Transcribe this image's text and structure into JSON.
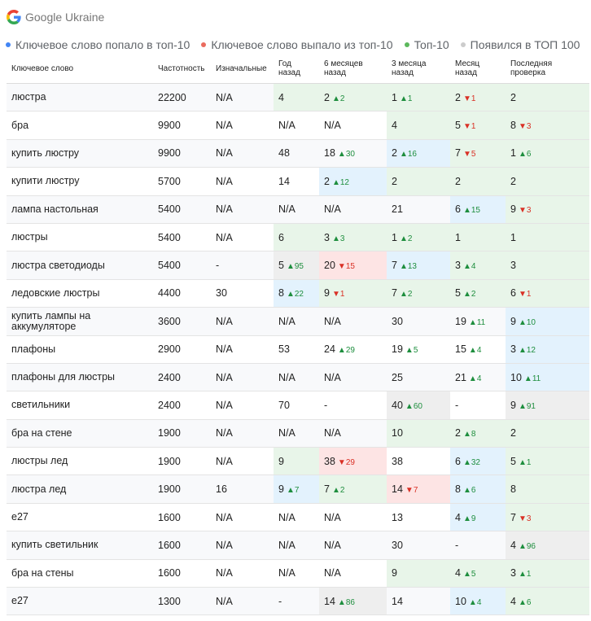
{
  "header": {
    "title": "Google Ukraine"
  },
  "legend": [
    {
      "label": "Ключевое слово попало в топ-10",
      "color": "#4285f4"
    },
    {
      "label": "Ключевое слово выпало из топ-10",
      "color": "#ea6b5e"
    },
    {
      "label": "Топ-10",
      "color": "#5cb85c"
    },
    {
      "label": "Появился в ТОП 100",
      "color": "#cccccc"
    }
  ],
  "columns": [
    "Ключевое слово",
    "Частотность",
    "Изначальные",
    "Год назад",
    "6 месяцев назад",
    "3 месяца назад",
    "Месяц назад",
    "Последняя проверка"
  ],
  "rows": [
    {
      "keyword": "люстра",
      "freq": "22200",
      "init": "N/A",
      "cells": [
        {
          "v": "4",
          "bg": "g"
        },
        {
          "v": "2",
          "d": "2",
          "dir": "up",
          "bg": "g"
        },
        {
          "v": "1",
          "d": "1",
          "dir": "up",
          "bg": "g"
        },
        {
          "v": "2",
          "d": "1",
          "dir": "dn",
          "bg": "g"
        },
        {
          "v": "2",
          "bg": "g"
        }
      ]
    },
    {
      "keyword": "бра",
      "freq": "9900",
      "init": "N/A",
      "cells": [
        {
          "v": "N/A"
        },
        {
          "v": "N/A"
        },
        {
          "v": "4",
          "bg": "g"
        },
        {
          "v": "5",
          "d": "1",
          "dir": "dn",
          "bg": "g"
        },
        {
          "v": "8",
          "d": "3",
          "dir": "dn",
          "bg": "g"
        }
      ]
    },
    {
      "keyword": "купить люстру",
      "freq": "9900",
      "init": "N/A",
      "cells": [
        {
          "v": "48"
        },
        {
          "v": "18",
          "d": "30",
          "dir": "up"
        },
        {
          "v": "2",
          "d": "16",
          "dir": "up",
          "bg": "b"
        },
        {
          "v": "7",
          "d": "5",
          "dir": "dn",
          "bg": "g"
        },
        {
          "v": "1",
          "d": "6",
          "dir": "up",
          "bg": "g"
        }
      ]
    },
    {
      "keyword": "купити люстру",
      "freq": "5700",
      "init": "N/A",
      "cells": [
        {
          "v": "14"
        },
        {
          "v": "2",
          "d": "12",
          "dir": "up",
          "bg": "b"
        },
        {
          "v": "2",
          "bg": "g"
        },
        {
          "v": "2",
          "bg": "g"
        },
        {
          "v": "2",
          "bg": "g"
        }
      ]
    },
    {
      "keyword": "лампа настольная",
      "freq": "5400",
      "init": "N/A",
      "cells": [
        {
          "v": "N/A"
        },
        {
          "v": "N/A"
        },
        {
          "v": "21"
        },
        {
          "v": "6",
          "d": "15",
          "dir": "up",
          "bg": "b"
        },
        {
          "v": "9",
          "d": "3",
          "dir": "dn",
          "bg": "g"
        }
      ]
    },
    {
      "keyword": "люстры",
      "freq": "5400",
      "init": "N/A",
      "cells": [
        {
          "v": "6",
          "bg": "g"
        },
        {
          "v": "3",
          "d": "3",
          "dir": "up",
          "bg": "g"
        },
        {
          "v": "1",
          "d": "2",
          "dir": "up",
          "bg": "g"
        },
        {
          "v": "1",
          "bg": "g"
        },
        {
          "v": "1",
          "bg": "g"
        }
      ]
    },
    {
      "keyword": "люстра светодиоды",
      "freq": "5400",
      "init": "-",
      "cells": [
        {
          "v": "5",
          "d": "95",
          "dir": "up",
          "bg": "x"
        },
        {
          "v": "20",
          "d": "15",
          "dir": "dn",
          "bg": "r"
        },
        {
          "v": "7",
          "d": "13",
          "dir": "up",
          "bg": "b"
        },
        {
          "v": "3",
          "d": "4",
          "dir": "up",
          "bg": "g"
        },
        {
          "v": "3",
          "bg": "g"
        }
      ]
    },
    {
      "keyword": "ледовские люстры",
      "freq": "4400",
      "init": "30",
      "cells": [
        {
          "v": "8",
          "d": "22",
          "dir": "up",
          "bg": "b"
        },
        {
          "v": "9",
          "d": "1",
          "dir": "dn",
          "bg": "g"
        },
        {
          "v": "7",
          "d": "2",
          "dir": "up",
          "bg": "g"
        },
        {
          "v": "5",
          "d": "2",
          "dir": "up",
          "bg": "g"
        },
        {
          "v": "6",
          "d": "1",
          "dir": "dn",
          "bg": "g"
        }
      ]
    },
    {
      "keyword": "купить лампы на аккумуляторе",
      "freq": "3600",
      "init": "N/A",
      "cells": [
        {
          "v": "N/A"
        },
        {
          "v": "N/A"
        },
        {
          "v": "30"
        },
        {
          "v": "19",
          "d": "11",
          "dir": "up"
        },
        {
          "v": "9",
          "d": "10",
          "dir": "up",
          "bg": "b"
        }
      ]
    },
    {
      "keyword": "плафоны",
      "freq": "2900",
      "init": "N/A",
      "cells": [
        {
          "v": "53"
        },
        {
          "v": "24",
          "d": "29",
          "dir": "up"
        },
        {
          "v": "19",
          "d": "5",
          "dir": "up"
        },
        {
          "v": "15",
          "d": "4",
          "dir": "up"
        },
        {
          "v": "3",
          "d": "12",
          "dir": "up",
          "bg": "b"
        }
      ]
    },
    {
      "keyword": "плафоны для люстры",
      "freq": "2400",
      "init": "N/A",
      "cells": [
        {
          "v": "N/A"
        },
        {
          "v": "N/A"
        },
        {
          "v": "25"
        },
        {
          "v": "21",
          "d": "4",
          "dir": "up"
        },
        {
          "v": "10",
          "d": "11",
          "dir": "up",
          "bg": "b"
        }
      ]
    },
    {
      "keyword": "светильники",
      "freq": "2400",
      "init": "N/A",
      "cells": [
        {
          "v": "70"
        },
        {
          "v": "-"
        },
        {
          "v": "40",
          "d": "60",
          "dir": "up",
          "bg": "x"
        },
        {
          "v": "-"
        },
        {
          "v": "9",
          "d": "91",
          "dir": "up",
          "bg": "x"
        }
      ]
    },
    {
      "keyword": "бра на стене",
      "freq": "1900",
      "init": "N/A",
      "cells": [
        {
          "v": "N/A"
        },
        {
          "v": "N/A"
        },
        {
          "v": "10",
          "bg": "g"
        },
        {
          "v": "2",
          "d": "8",
          "dir": "up",
          "bg": "g"
        },
        {
          "v": "2",
          "bg": "g"
        }
      ]
    },
    {
      "keyword": "люстры лед",
      "freq": "1900",
      "init": "N/A",
      "cells": [
        {
          "v": "9",
          "bg": "g"
        },
        {
          "v": "38",
          "d": "29",
          "dir": "dn",
          "bg": "r"
        },
        {
          "v": "38"
        },
        {
          "v": "6",
          "d": "32",
          "dir": "up",
          "bg": "b"
        },
        {
          "v": "5",
          "d": "1",
          "dir": "up",
          "bg": "g"
        }
      ]
    },
    {
      "keyword": "люстра лед",
      "freq": "1900",
      "init": "16",
      "cells": [
        {
          "v": "9",
          "d": "7",
          "dir": "up",
          "bg": "b"
        },
        {
          "v": "7",
          "d": "2",
          "dir": "up",
          "bg": "g"
        },
        {
          "v": "14",
          "d": "7",
          "dir": "dn",
          "bg": "r"
        },
        {
          "v": "8",
          "d": "6",
          "dir": "up",
          "bg": "b"
        },
        {
          "v": "8",
          "bg": "g"
        }
      ]
    },
    {
      "keyword": "e27",
      "freq": "1600",
      "init": "N/A",
      "cells": [
        {
          "v": "N/A"
        },
        {
          "v": "N/A"
        },
        {
          "v": "13"
        },
        {
          "v": "4",
          "d": "9",
          "dir": "up",
          "bg": "b"
        },
        {
          "v": "7",
          "d": "3",
          "dir": "dn",
          "bg": "g"
        }
      ]
    },
    {
      "keyword": "купить светильник",
      "freq": "1600",
      "init": "N/A",
      "cells": [
        {
          "v": "N/A"
        },
        {
          "v": "N/A"
        },
        {
          "v": "30"
        },
        {
          "v": "-"
        },
        {
          "v": "4",
          "d": "96",
          "dir": "up",
          "bg": "x"
        }
      ]
    },
    {
      "keyword": "бра на стены",
      "freq": "1600",
      "init": "N/A",
      "cells": [
        {
          "v": "N/A"
        },
        {
          "v": "N/A"
        },
        {
          "v": "9",
          "bg": "g"
        },
        {
          "v": "4",
          "d": "5",
          "dir": "up",
          "bg": "g"
        },
        {
          "v": "3",
          "d": "1",
          "dir": "up",
          "bg": "g"
        }
      ]
    },
    {
      "keyword": "e27",
      "freq": "1300",
      "init": "N/A",
      "cells": [
        {
          "v": "-"
        },
        {
          "v": "14",
          "d": "86",
          "dir": "up",
          "bg": "x"
        },
        {
          "v": "14"
        },
        {
          "v": "10",
          "d": "4",
          "dir": "up",
          "bg": "b"
        },
        {
          "v": "4",
          "d": "6",
          "dir": "up",
          "bg": "g"
        }
      ]
    }
  ]
}
